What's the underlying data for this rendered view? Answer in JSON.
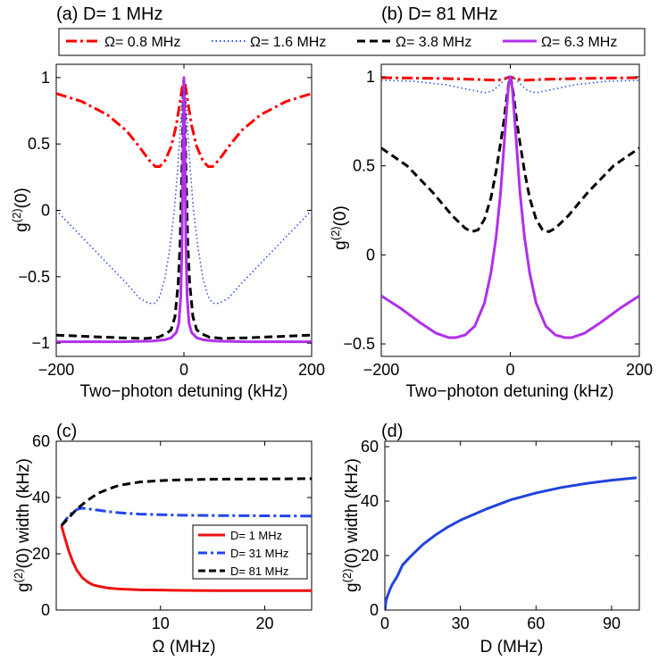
{
  "legend_top": {
    "entries": [
      {
        "label": "Ω= 0.8 MHz",
        "color": "#ff0000",
        "dash": "dashdot"
      },
      {
        "label": "Ω= 1.6 MHz",
        "color": "#3355dd",
        "dash": "dot"
      },
      {
        "label": "Ω= 3.8 MHz",
        "color": "#000000",
        "dash": "dash"
      },
      {
        "label": "Ω= 6.3 MHz",
        "color": "#b030e8",
        "dash": "solid"
      }
    ]
  },
  "chart_data": [
    {
      "id": "a",
      "type": "line",
      "title": "(a) D= 1 MHz",
      "xlabel": "Two−photon detuning (kHz)",
      "ylabel": "g(2)(0)",
      "xlim": [
        -200,
        200
      ],
      "ylim": [
        -1.1,
        1.1
      ],
      "xticks": [
        -200,
        0,
        200
      ],
      "xticklabels": [
        "−200",
        "0",
        "200"
      ],
      "yticks": [
        -1,
        -0.5,
        0,
        0.5,
        1
      ],
      "yticklabels": [
        "−1",
        "−0.5",
        "0",
        "0.5",
        "1"
      ],
      "series": [
        {
          "name": "Ω= 0.8 MHz",
          "color": "#ff0000",
          "dash": "dashdot",
          "x": [
            -200,
            -160,
            -120,
            -90,
            -70,
            -55,
            -45,
            -38,
            -30,
            -20,
            -12,
            -6,
            -2,
            0,
            2,
            6,
            12,
            20,
            30,
            38,
            45,
            55,
            70,
            90,
            120,
            160,
            200
          ],
          "y": [
            0.88,
            0.82,
            0.72,
            0.6,
            0.48,
            0.38,
            0.33,
            0.33,
            0.37,
            0.48,
            0.64,
            0.82,
            0.95,
            0.98,
            0.95,
            0.82,
            0.64,
            0.48,
            0.37,
            0.33,
            0.33,
            0.38,
            0.48,
            0.6,
            0.72,
            0.82,
            0.88
          ]
        },
        {
          "name": "Ω= 1.6 MHz",
          "color": "#3355dd",
          "dash": "dot",
          "x": [
            -200,
            -160,
            -120,
            -90,
            -70,
            -55,
            -45,
            -38,
            -30,
            -22,
            -15,
            -10,
            -6,
            -3,
            0,
            3,
            6,
            10,
            15,
            22,
            30,
            38,
            45,
            55,
            70,
            90,
            120,
            160,
            200
          ],
          "y": [
            0.0,
            -0.2,
            -0.4,
            -0.55,
            -0.66,
            -0.7,
            -0.7,
            -0.65,
            -0.52,
            -0.28,
            0.0,
            0.3,
            0.6,
            0.85,
            0.98,
            0.85,
            0.6,
            0.3,
            0.0,
            -0.28,
            -0.52,
            -0.65,
            -0.7,
            -0.7,
            -0.66,
            -0.55,
            -0.4,
            -0.2,
            0.0
          ]
        },
        {
          "name": "Ω= 3.8 MHz",
          "color": "#000000",
          "dash": "dash",
          "x": [
            -200,
            -150,
            -100,
            -60,
            -40,
            -28,
            -20,
            -14,
            -9,
            -6,
            -3,
            -1,
            0,
            1,
            3,
            6,
            9,
            14,
            20,
            28,
            40,
            60,
            100,
            150,
            200
          ],
          "y": [
            -0.94,
            -0.95,
            -0.96,
            -0.965,
            -0.955,
            -0.93,
            -0.9,
            -0.8,
            -0.55,
            -0.25,
            0.35,
            0.85,
            0.98,
            0.85,
            0.35,
            -0.25,
            -0.55,
            -0.8,
            -0.9,
            -0.93,
            -0.955,
            -0.965,
            -0.96,
            -0.95,
            -0.94
          ]
        },
        {
          "name": "Ω= 6.3 MHz",
          "color": "#b030e8",
          "dash": "solid",
          "x": [
            -200,
            -100,
            -50,
            -30,
            -20,
            -12,
            -8,
            -5,
            -3,
            -1.5,
            0,
            1.5,
            3,
            5,
            8,
            12,
            20,
            30,
            50,
            100,
            200
          ],
          "y": [
            -0.99,
            -0.99,
            -0.985,
            -0.975,
            -0.96,
            -0.92,
            -0.85,
            -0.65,
            -0.25,
            0.45,
            1.0,
            0.45,
            -0.25,
            -0.65,
            -0.85,
            -0.92,
            -0.96,
            -0.975,
            -0.985,
            -0.99,
            -0.99
          ]
        }
      ]
    },
    {
      "id": "b",
      "type": "line",
      "title": "(b) D= 81 MHz",
      "xlabel": "Two−photon detuning (kHz)",
      "ylabel": "g(2)(0)",
      "xlim": [
        -200,
        200
      ],
      "ylim": [
        -0.57,
        1.07
      ],
      "xticks": [
        -200,
        0,
        200
      ],
      "xticklabels": [
        "−200",
        "0",
        "200"
      ],
      "yticks": [
        -0.5,
        0,
        0.5,
        1
      ],
      "yticklabels": [
        "−0.5",
        "0",
        "0.5",
        "1"
      ],
      "series": [
        {
          "name": "Ω= 0.8 MHz",
          "color": "#ff0000",
          "dash": "dashdot",
          "x": [
            -200,
            -100,
            -50,
            -20,
            -8,
            0,
            8,
            20,
            50,
            100,
            200
          ],
          "y": [
            0.995,
            0.99,
            0.985,
            0.98,
            0.99,
            1.0,
            0.99,
            0.98,
            0.985,
            0.99,
            0.995
          ]
        },
        {
          "name": "Ω= 1.6 MHz",
          "color": "#3355dd",
          "dash": "dot",
          "x": [
            -200,
            -150,
            -100,
            -60,
            -40,
            -28,
            -18,
            -10,
            -4,
            0,
            4,
            10,
            18,
            28,
            40,
            60,
            100,
            150,
            200
          ],
          "y": [
            0.98,
            0.975,
            0.955,
            0.925,
            0.91,
            0.92,
            0.95,
            0.98,
            1.0,
            1.0,
            1.0,
            0.98,
            0.95,
            0.92,
            0.91,
            0.925,
            0.955,
            0.975,
            0.98
          ]
        },
        {
          "name": "Ω= 3.8 MHz",
          "color": "#000000",
          "dash": "dash",
          "x": [
            -200,
            -160,
            -120,
            -90,
            -70,
            -60,
            -50,
            -40,
            -30,
            -22,
            -15,
            -10,
            -5,
            -2,
            0,
            2,
            5,
            10,
            15,
            22,
            30,
            40,
            50,
            60,
            70,
            90,
            120,
            160,
            200
          ],
          "y": [
            0.6,
            0.5,
            0.35,
            0.22,
            0.15,
            0.13,
            0.14,
            0.2,
            0.32,
            0.47,
            0.63,
            0.75,
            0.9,
            0.97,
            1.0,
            0.97,
            0.9,
            0.75,
            0.63,
            0.47,
            0.32,
            0.2,
            0.14,
            0.13,
            0.15,
            0.22,
            0.35,
            0.5,
            0.6
          ]
        },
        {
          "name": "Ω= 6.3 MHz",
          "color": "#b030e8",
          "dash": "solid",
          "x": [
            -200,
            -170,
            -140,
            -115,
            -95,
            -85,
            -70,
            -55,
            -40,
            -30,
            -22,
            -15,
            -10,
            -6,
            -3,
            0,
            3,
            6,
            10,
            15,
            22,
            30,
            40,
            55,
            70,
            85,
            95,
            115,
            140,
            170,
            200
          ],
          "y": [
            -0.23,
            -0.3,
            -0.38,
            -0.44,
            -0.465,
            -0.465,
            -0.45,
            -0.4,
            -0.27,
            -0.1,
            0.1,
            0.35,
            0.6,
            0.8,
            0.94,
            1.0,
            0.94,
            0.8,
            0.6,
            0.35,
            0.1,
            -0.1,
            -0.27,
            -0.4,
            -0.45,
            -0.465,
            -0.465,
            -0.44,
            -0.38,
            -0.3,
            -0.23
          ]
        }
      ]
    },
    {
      "id": "c",
      "type": "line",
      "title": "(c)",
      "xlabel": "Ω (MHz)",
      "ylabel": "g(2)(0) width (kHz)",
      "xlim": [
        0,
        24.5
      ],
      "ylim": [
        0,
        60
      ],
      "xticks": [
        10,
        20
      ],
      "xticklabels": [
        "10",
        "20"
      ],
      "yticks": [
        0,
        20,
        40,
        60
      ],
      "yticklabels": [
        "0",
        "20",
        "40",
        "60"
      ],
      "legend": [
        "D= 1 MHz",
        "D= 31 MHz",
        "D= 81 MHz"
      ],
      "series": [
        {
          "name": "D= 1 MHz",
          "color": "#ee1111",
          "dash": "solid",
          "x": [
            0.5,
            0.8,
            1.2,
            1.6,
            2,
            2.5,
            3,
            3.5,
            4,
            5,
            6,
            8,
            10,
            12,
            15,
            20,
            24.5
          ],
          "y": [
            30,
            26,
            21,
            17,
            14,
            11.5,
            10,
            9,
            8.5,
            7.8,
            7.5,
            7.2,
            7.1,
            7.0,
            6.9,
            6.9,
            6.9
          ]
        },
        {
          "name": "D= 31 MHz",
          "color": "#2244ee",
          "dash": "dashdot",
          "x": [
            0.5,
            1,
            1.5,
            2,
            2.5,
            3,
            4,
            5,
            6,
            8,
            10,
            12,
            15,
            20,
            24.5
          ],
          "y": [
            30,
            32.5,
            34.5,
            35.8,
            36.2,
            36.0,
            35.5,
            35,
            34.6,
            34.1,
            33.9,
            33.7,
            33.6,
            33.5,
            33.4
          ]
        },
        {
          "name": "D= 81 MHz",
          "color": "#000000",
          "dash": "dash",
          "x": [
            0.5,
            1,
            1.5,
            2,
            2.5,
            3,
            4,
            5,
            6,
            8,
            10,
            12,
            15,
            20,
            24.5
          ],
          "y": [
            30,
            32,
            34,
            36,
            37.5,
            39,
            41.5,
            43,
            44.3,
            45.5,
            46,
            46.3,
            46.5,
            46.6,
            46.7
          ]
        }
      ]
    },
    {
      "id": "d",
      "type": "line",
      "title": "(d)",
      "xlabel": "D (MHz)",
      "ylabel": "g(2)(0) width (kHz)",
      "xlim": [
        0,
        101
      ],
      "ylim": [
        0,
        62
      ],
      "xticks": [
        0,
        30,
        60,
        90
      ],
      "xticklabels": [
        "0",
        "30",
        "60",
        "90"
      ],
      "yticks": [
        0,
        20,
        40,
        60
      ],
      "yticklabels": [
        "0",
        "20",
        "40",
        "60"
      ],
      "series": [
        {
          "name": "width vs D",
          "color": "#2244dd",
          "dash": "solid",
          "x": [
            0,
            0.5,
            1,
            2,
            3,
            5,
            7,
            10,
            15,
            20,
            25,
            30,
            40,
            50,
            60,
            70,
            80,
            90,
            100
          ],
          "y": [
            0,
            3.5,
            5,
            7.5,
            9.5,
            12.5,
            16.5,
            19.5,
            24,
            27.5,
            30.5,
            33,
            37,
            40.5,
            43,
            45,
            46.5,
            47.7,
            48.6
          ]
        }
      ]
    }
  ]
}
